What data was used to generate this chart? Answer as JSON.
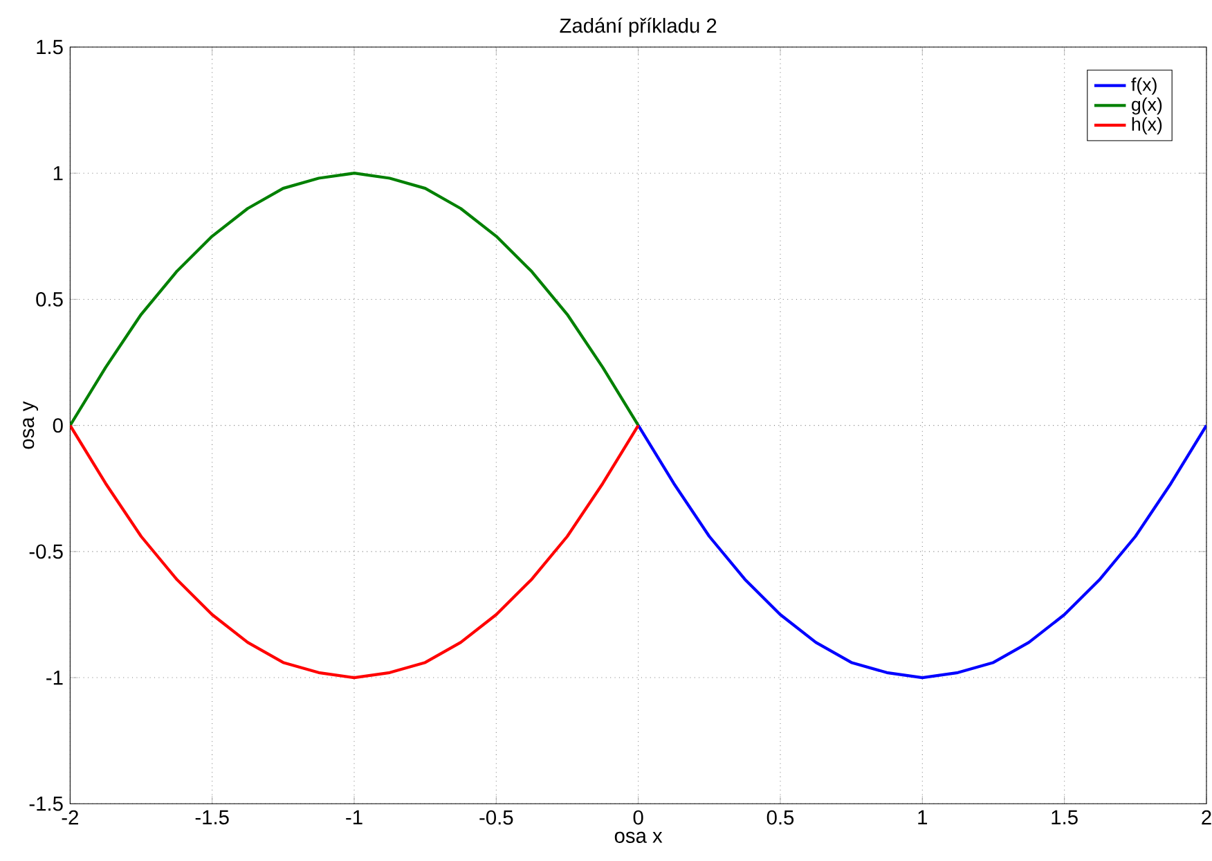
{
  "chart_data": {
    "type": "line",
    "title": "Zadání příkladu 2",
    "xlabel": "osa x",
    "ylabel": "osa y",
    "xlim": [
      -2,
      2
    ],
    "ylim": [
      -1.5,
      1.5
    ],
    "xticks": [
      -2,
      -1.5,
      -1,
      -0.5,
      0,
      0.5,
      1,
      1.5,
      2
    ],
    "yticks": [
      -1.5,
      -1,
      -0.5,
      0,
      0.5,
      1,
      1.5
    ],
    "grid": true,
    "legend": "top right",
    "line_style": "solid",
    "marker": "none",
    "series": [
      {
        "name": "f(x)",
        "color": "#0000ff",
        "x": [
          0,
          0.125,
          0.25,
          0.375,
          0.5,
          0.625,
          0.75,
          0.875,
          1,
          1.125,
          1.25,
          1.375,
          1.5,
          1.625,
          1.75,
          1.875,
          2
        ],
        "values": [
          0,
          -0.23,
          -0.44,
          -0.61,
          -0.75,
          -0.86,
          -0.94,
          -0.98,
          -1,
          -0.98,
          -0.94,
          -0.86,
          -0.75,
          -0.61,
          -0.44,
          -0.23,
          0
        ]
      },
      {
        "name": "g(x)",
        "color": "#008000",
        "x": [
          -2,
          -1.875,
          -1.75,
          -1.625,
          -1.5,
          -1.375,
          -1.25,
          -1.125,
          -1,
          -0.875,
          -0.75,
          -0.625,
          -0.5,
          -0.375,
          -0.25,
          -0.125,
          0
        ],
        "values": [
          0,
          0.23,
          0.44,
          0.61,
          0.75,
          0.86,
          0.94,
          0.98,
          1,
          0.98,
          0.94,
          0.86,
          0.75,
          0.61,
          0.44,
          0.23,
          0
        ]
      },
      {
        "name": "h(x)",
        "color": "#ff0000",
        "x": [
          -2,
          -1.875,
          -1.75,
          -1.625,
          -1.5,
          -1.375,
          -1.25,
          -1.125,
          -1,
          -0.875,
          -0.75,
          -0.625,
          -0.5,
          -0.375,
          -0.25,
          -0.125,
          0
        ],
        "values": [
          0,
          -0.23,
          -0.44,
          -0.61,
          -0.75,
          -0.86,
          -0.94,
          -0.98,
          -1,
          -0.98,
          -0.94,
          -0.86,
          -0.75,
          -0.61,
          -0.44,
          -0.23,
          0
        ]
      }
    ]
  }
}
